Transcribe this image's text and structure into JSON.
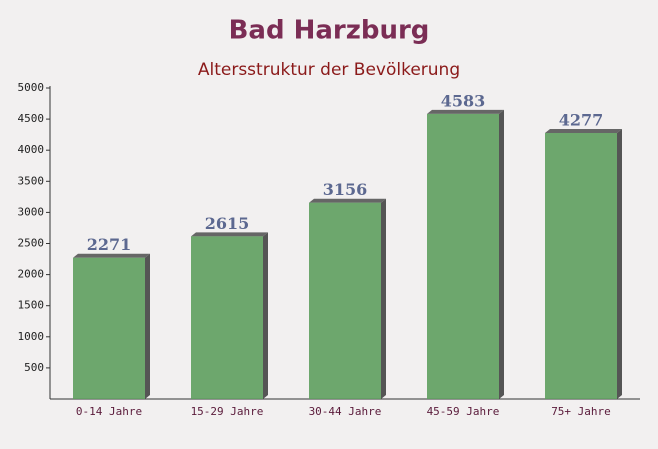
{
  "chart_data": {
    "type": "bar",
    "title": "Bad Harzburg",
    "subtitle": "Altersstruktur der Bevölkerung",
    "categories": [
      "0-14 Jahre",
      "15-29 Jahre",
      "30-44 Jahre",
      "45-59 Jahre",
      "75+ Jahre"
    ],
    "values": [
      2271,
      2615,
      3156,
      4583,
      4277
    ],
    "color": "#5e9e5e",
    "ylim": [
      0,
      5000
    ],
    "yticks": [
      500,
      1000,
      1500,
      2000,
      2500,
      3000,
      3500,
      4000,
      4500,
      5000
    ]
  }
}
